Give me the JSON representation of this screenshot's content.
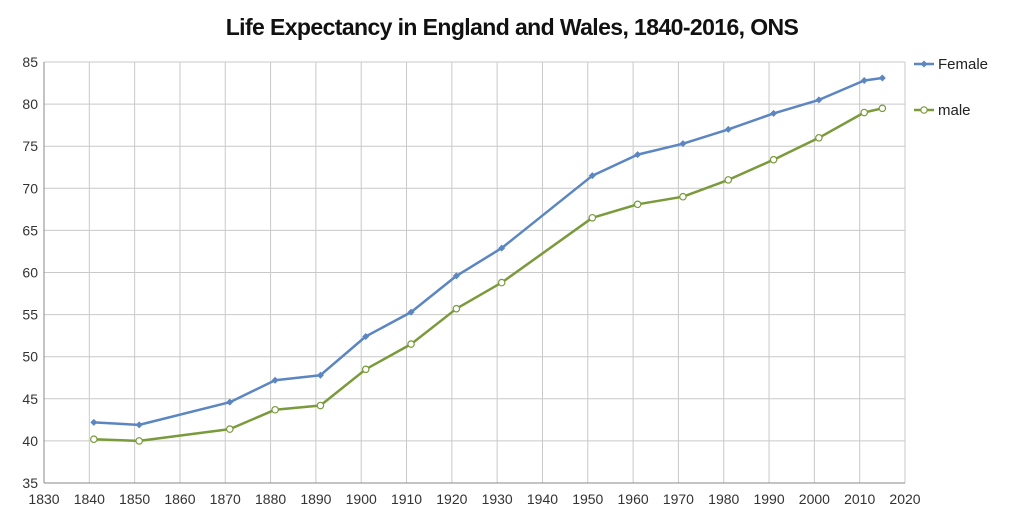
{
  "chart_data": {
    "type": "line",
    "title": "Life Expectancy in England and Wales, 1840-2016,  ONS",
    "xlabel": "",
    "ylabel": "",
    "xlim": [
      1830,
      2020
    ],
    "ylim": [
      35,
      85
    ],
    "x_ticks": [
      1830,
      1840,
      1850,
      1860,
      1870,
      1880,
      1890,
      1900,
      1910,
      1920,
      1930,
      1940,
      1950,
      1960,
      1970,
      1980,
      1990,
      2000,
      2010,
      2020
    ],
    "y_ticks": [
      35,
      40,
      45,
      50,
      55,
      60,
      65,
      70,
      75,
      80,
      85
    ],
    "grid": true,
    "legend_position": "right",
    "series": [
      {
        "name": "Female",
        "color": "#5b86c2",
        "marker": "diamond",
        "x": [
          1841,
          1851,
          1871,
          1881,
          1891,
          1901,
          1911,
          1921,
          1931,
          1951,
          1961,
          1971,
          1981,
          1991,
          2001,
          2011,
          2015
        ],
        "y": [
          42.2,
          41.9,
          44.6,
          47.2,
          47.8,
          52.4,
          55.3,
          59.6,
          62.9,
          71.5,
          74.0,
          75.3,
          77.0,
          78.9,
          80.5,
          82.8,
          83.1
        ]
      },
      {
        "name": "male",
        "color": "#7a9a3c",
        "marker": "circle",
        "x": [
          1841,
          1851,
          1871,
          1881,
          1891,
          1901,
          1911,
          1921,
          1931,
          1951,
          1961,
          1971,
          1981,
          1991,
          2001,
          2011,
          2015
        ],
        "y": [
          40.2,
          40.0,
          41.4,
          43.7,
          44.2,
          48.5,
          51.5,
          55.7,
          58.8,
          66.5,
          68.1,
          69.0,
          71.0,
          73.4,
          76.0,
          79.0,
          79.5
        ]
      }
    ]
  }
}
